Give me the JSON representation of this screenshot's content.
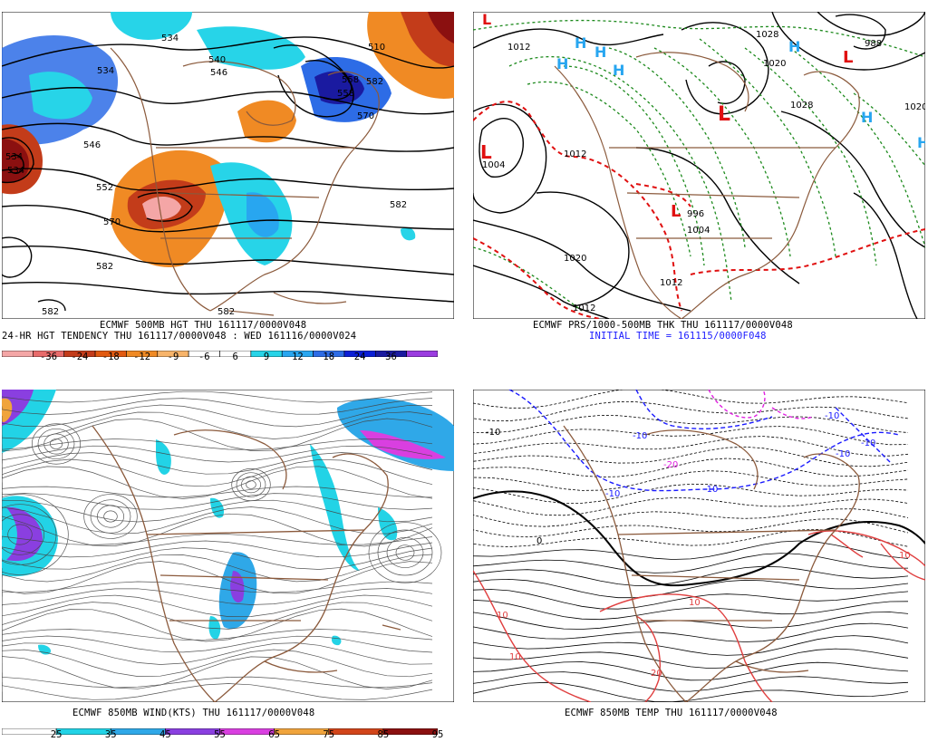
{
  "panels": {
    "hgt500": {
      "caption1": "ECMWF 500MB HGT THU 161117/0000V048",
      "caption2": "24-HR HGT TENDENCY THU 161117/0000V048 : WED 161116/0000V024",
      "contour_labels": [
        "534",
        "534",
        "540",
        "510",
        "534",
        "534",
        "546",
        "552",
        "558",
        "570",
        "546",
        "570",
        "558",
        "582",
        "582",
        "582",
        "582",
        "582"
      ],
      "colorbar": {
        "ticks": [
          "-36",
          "-24",
          "-18",
          "-12",
          "-9",
          "-6",
          "6",
          "9",
          "12",
          "18",
          "24",
          "36"
        ],
        "colors": [
          "#f4a6a6",
          "#e86b6b",
          "#c33c1a",
          "#e25a10",
          "#f08a24",
          "#f7b46a",
          "#ffffff",
          "#ffffff",
          "#27d4e8",
          "#28a6f0",
          "#2d6ce6",
          "#0b1fd6",
          "#1a1aa0",
          "#9b3ce0"
        ]
      }
    },
    "prs": {
      "caption1": "ECMWF PRS/1000-500MB THK THU 161117/0000V048",
      "caption2": "INITIAL TIME = 161115/0000F048",
      "highs": [
        "H",
        "H",
        "H",
        "H",
        "H",
        "H",
        "H"
      ],
      "lows": [
        "L",
        "L",
        "L",
        "L",
        "L"
      ],
      "isobar_labels": [
        "1012",
        "1028",
        "1004",
        "1012",
        "1020",
        "1012",
        "996",
        "1004",
        "1012",
        "1028",
        "1020",
        "988",
        "1020"
      ]
    },
    "wind850": {
      "caption1": "ECMWF 850MB WIND(KTS) THU 161117/0000V048",
      "colorbar": {
        "ticks": [
          "25",
          "35",
          "45",
          "55",
          "65",
          "75",
          "85",
          "95"
        ],
        "colors": [
          "#ffffff",
          "#22d3e6",
          "#2fa8e8",
          "#8a3fe0",
          "#d93fe0",
          "#f0a43c",
          "#d2451a",
          "#8b1010"
        ]
      }
    },
    "temp850": {
      "caption1": "ECMWF 850MB TEMP THU 161117/0000V048",
      "contour_labels": [
        "-10",
        "-10",
        "-10",
        "-20",
        "-10",
        "-10",
        "-10",
        "10",
        "10",
        "10",
        "20",
        "10",
        "-10",
        "0"
      ]
    }
  }
}
